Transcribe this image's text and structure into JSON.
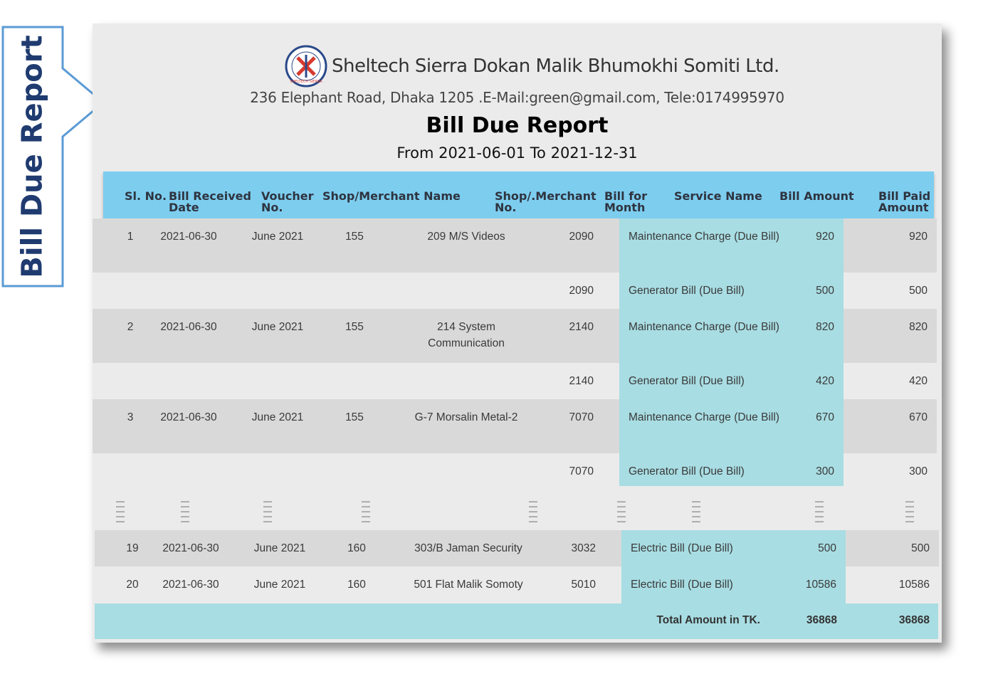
{
  "callout": {
    "label": "Bill Due Report"
  },
  "report": {
    "company": "Sheltech Sierra Dokan Malik Bhumokhi Somiti Ltd.",
    "address": "236 Elephant Road, Dhaka 1205 .E-Mail:green@gmail.com, Tele:0174995970",
    "title": "Bill Due Report",
    "period": "From 2021-06-01 To 2021-12-31",
    "logo_text": "SHELTECH SIERRA"
  },
  "columns": {
    "sl": "Sl. No.",
    "date_1": "Bill Received",
    "date_2": "Date",
    "voucher_1": "Voucher",
    "voucher_2": "No.",
    "shop_name": "Shop/Merchant Name",
    "shop_no_1": "Shop/.Merchant",
    "shop_no_2": "No.",
    "month_1": "Bill for",
    "month_2": "Month",
    "service": "Service Name",
    "amount": "Bill Amount",
    "paid_1": "Bill Paid",
    "paid_2": "Amount"
  },
  "rows": [
    {
      "sl": "1",
      "date": "2021-06-30",
      "month": "June 2021",
      "voucher": "155",
      "shop": "209 M/S Videos",
      "shop_no": "2090",
      "service": "Maintenance Charge (Due Bill)",
      "amount": "920",
      "paid": "920"
    },
    {
      "sl": "",
      "date": "",
      "month": "",
      "voucher": "",
      "shop": "",
      "shop_no": "2090",
      "service": "Generator Bill (Due Bill)",
      "amount": "500",
      "paid": "500"
    },
    {
      "sl": "2",
      "date": "2021-06-30",
      "month": "June 2021",
      "voucher": "155",
      "shop": "214 System Communication",
      "shop_no": "2140",
      "service": "Maintenance Charge (Due Bill)",
      "amount": "820",
      "paid": "820"
    },
    {
      "sl": "",
      "date": "",
      "month": "",
      "voucher": "",
      "shop": "",
      "shop_no": "2140",
      "service": "Generator Bill (Due Bill)",
      "amount": "420",
      "paid": "420"
    },
    {
      "sl": "3",
      "date": "2021-06-30",
      "month": "June 2021",
      "voucher": "155",
      "shop": "G-7  Morsalin Metal-2",
      "shop_no": "7070",
      "service": "Maintenance Charge (Due Bill)",
      "amount": "670",
      "paid": "670"
    },
    {
      "sl": "",
      "date": "",
      "month": "",
      "voucher": "",
      "shop": "",
      "shop_no": "7070",
      "service": "Generator Bill (Due Bill)",
      "amount": "300",
      "paid": "300"
    }
  ],
  "rows_bottom": [
    {
      "sl": "19",
      "date": "2021-06-30",
      "month": "June 2021",
      "voucher": "160",
      "shop": "303/B  Jaman Security",
      "shop_no": "3032",
      "service": "Electric Bill (Due Bill)",
      "amount": "500",
      "paid": "500"
    },
    {
      "sl": "20",
      "date": "2021-06-30",
      "month": "June 2021",
      "voucher": "160",
      "shop": "501 Flat Malik Somoty",
      "shop_no": "5010",
      "service": "Electric Bill (Due Bill)",
      "amount": "10586",
      "paid": "10586"
    }
  ],
  "total": {
    "label": "Total Amount in TK.",
    "amount": "36868",
    "paid": "36868"
  },
  "colors": {
    "header_bar": "#7dcdef",
    "service_bg": "#a8dde3",
    "callout_border": "#5b9bd5",
    "callout_text": "#1f3b70"
  }
}
